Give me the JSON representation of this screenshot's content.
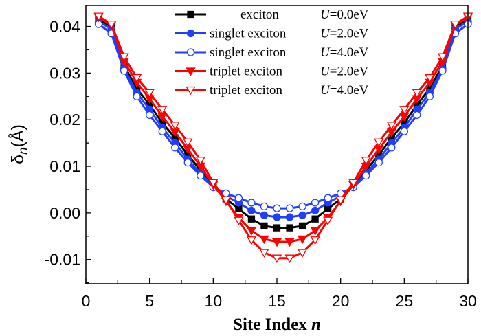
{
  "chart_data": {
    "type": "line",
    "xlabel": "Site Index",
    "xlabel_var": "n",
    "ylabel": "δ",
    "ylabel_sub": "n",
    "ylabel_unit": "(Å)",
    "xlim": [
      0,
      30
    ],
    "ylim": [
      -0.0152,
      0.0445
    ],
    "xticks": [
      "0",
      "5",
      "10",
      "15",
      "20",
      "25",
      "30"
    ],
    "yticks": [
      "-0.01",
      "0.00",
      "0.01",
      "0.02",
      "0.03",
      "0.04"
    ],
    "grid": false,
    "legend_position": "top-right",
    "x": [
      1,
      2,
      3,
      4,
      5,
      6,
      7,
      8,
      9,
      10,
      11,
      12,
      13,
      14,
      15,
      16,
      17,
      18,
      19,
      20,
      21,
      22,
      23,
      24,
      25,
      26,
      27,
      28,
      29,
      30
    ],
    "series": [
      {
        "name": "exciton",
        "u_label": "U",
        "u_value": "=0.0eV",
        "color": "#000000",
        "marker": "square-filled",
        "values": [
          0.0415,
          0.04,
          0.0316,
          0.0267,
          0.0232,
          0.0193,
          0.0161,
          0.0124,
          0.0092,
          0.0058,
          0.003,
          0.0009,
          -0.0013,
          -0.0028,
          -0.0032,
          -0.0032,
          -0.0028,
          -0.0013,
          0.0009,
          0.003,
          0.0058,
          0.0092,
          0.0124,
          0.0161,
          0.0193,
          0.0232,
          0.0267,
          0.0316,
          0.04,
          0.0415
        ]
      },
      {
        "name": "singlet exciton",
        "u_label": "U",
        "u_value": "=2.0eV",
        "color": "#1f3fff",
        "marker": "circle-filled",
        "values": [
          0.041,
          0.0395,
          0.031,
          0.0258,
          0.0222,
          0.0183,
          0.015,
          0.0115,
          0.0085,
          0.0056,
          0.0036,
          0.0022,
          0.0005,
          -0.0005,
          -0.0009,
          -0.0009,
          -0.0005,
          0.0005,
          0.0022,
          0.0036,
          0.0056,
          0.0085,
          0.0115,
          0.015,
          0.0183,
          0.0222,
          0.0258,
          0.031,
          0.0395,
          0.041
        ]
      },
      {
        "name": "singlet exciton",
        "u_label": "U",
        "u_value": "=4.0eV",
        "color": "#1f3fff",
        "marker": "circle-open",
        "values": [
          0.0405,
          0.0385,
          0.0305,
          0.025,
          0.021,
          0.0175,
          0.014,
          0.0108,
          0.008,
          0.0055,
          0.0042,
          0.0032,
          0.0022,
          0.0014,
          0.001,
          0.001,
          0.0014,
          0.0022,
          0.0032,
          0.0042,
          0.0055,
          0.008,
          0.0108,
          0.014,
          0.0175,
          0.021,
          0.025,
          0.0305,
          0.0385,
          0.0405
        ]
      },
      {
        "name": "triplet exciton",
        "u_label": "U",
        "u_value": "=2.0eV",
        "color": "#ff0000",
        "marker": "triangle-down-filled",
        "values": [
          0.042,
          0.0403,
          0.0325,
          0.028,
          0.0245,
          0.0207,
          0.0173,
          0.0137,
          0.01,
          0.006,
          0.0025,
          -0.001,
          -0.0038,
          -0.0056,
          -0.0062,
          -0.0062,
          -0.0056,
          -0.0038,
          -0.001,
          0.0025,
          0.006,
          0.01,
          0.0137,
          0.0173,
          0.0207,
          0.0245,
          0.028,
          0.0325,
          0.0403,
          0.042
        ]
      },
      {
        "name": "triplet exciton",
        "u_label": "U",
        "u_value": "=4.0eV",
        "color": "#ff0000",
        "marker": "triangle-down-open",
        "values": [
          0.0422,
          0.0405,
          0.0335,
          0.029,
          0.0258,
          0.0222,
          0.0188,
          0.0152,
          0.0113,
          0.0065,
          0.0028,
          -0.0016,
          -0.0058,
          -0.0085,
          -0.0097,
          -0.0097,
          -0.0085,
          -0.0058,
          -0.0016,
          0.0028,
          0.0065,
          0.0113,
          0.0152,
          0.0188,
          0.0222,
          0.0258,
          0.029,
          0.0335,
          0.0405,
          0.0422
        ]
      }
    ]
  }
}
